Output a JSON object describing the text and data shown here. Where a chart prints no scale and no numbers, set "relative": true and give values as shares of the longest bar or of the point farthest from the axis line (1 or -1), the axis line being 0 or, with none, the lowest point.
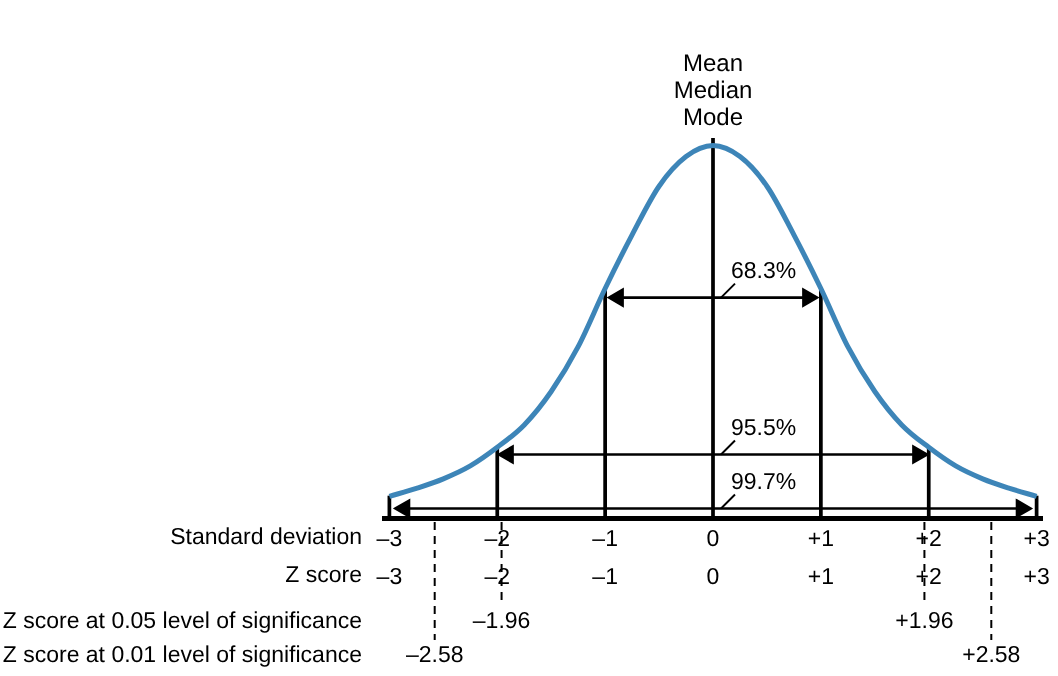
{
  "chart_data": {
    "type": "line",
    "relative": true,
    "xlabel": "Standard deviation",
    "x2label": "Z score",
    "x": [
      -3,
      -2.75,
      -2.5,
      -2.25,
      -2,
      -1.75,
      -1.5,
      -1.25,
      -1,
      -0.75,
      -0.5,
      -0.25,
      0,
      0.25,
      0.5,
      0.75,
      1,
      1.25,
      1.5,
      1.75,
      2,
      2.25,
      2.5,
      2.75,
      3
    ],
    "series": [
      {
        "color": "#3d85b8",
        "values": [
          0.057,
          0.078,
          0.103,
          0.137,
          0.186,
          0.245,
          0.333,
          0.451,
          0.604,
          0.745,
          0.873,
          0.951,
          0.98,
          0.951,
          0.873,
          0.745,
          0.604,
          0.451,
          0.333,
          0.245,
          0.186,
          0.137,
          0.103,
          0.078,
          0.057
        ]
      },
      {
        "type": "bar",
        "color": "#000000",
        "x": [
          -3,
          -2,
          -1,
          0,
          1,
          2,
          3
        ],
        "values": [
          0.057,
          0.186,
          0.604,
          1,
          0.604,
          0.186,
          0.057
        ]
      },
      {
        "type": "line",
        "name": "68.3%",
        "color": "#000000",
        "marker": "triangle",
        "x": [
          -0.88,
          0.88
        ],
        "values": [
          0.58,
          0.58
        ]
      },
      {
        "type": "line",
        "name": "95.5%",
        "color": "#000000",
        "marker": "triangle",
        "x": [
          -1.9,
          1.9
        ],
        "values": [
          0.167,
          0.167
        ]
      },
      {
        "type": "line",
        "name": "99.7%",
        "color": "#000000",
        "marker": "triangle",
        "x": [
          -2.86,
          2.86
        ],
        "values": [
          0.025,
          0.025
        ]
      }
    ],
    "xlim": [
      -3.05,
      3.05
    ],
    "xticks": [
      {
        "value": -3,
        "label": "–3"
      },
      {
        "value": -2,
        "label": "–2"
      },
      {
        "value": -1,
        "label": "–1"
      },
      0,
      {
        "value": 1,
        "label": "+1"
      },
      {
        "value": 2,
        "label": "+2"
      },
      {
        "value": 3,
        "label": "+3"
      }
    ],
    "x2lim": [
      -3.05,
      3.05
    ],
    "x2ticks": [
      {
        "value": -3,
        "label": "–3"
      },
      {
        "value": -2,
        "label": "–2"
      },
      {
        "value": -1,
        "label": "–1"
      },
      0,
      {
        "value": 1,
        "label": "+1"
      },
      {
        "value": 2,
        "label": "+2"
      },
      {
        "value": 3,
        "label": "+3"
      }
    ],
    "ref_lines": [
      {
        "axis": "x",
        "value": -1.96,
        "label": "–1.96",
        "line_style": "dashed"
      },
      {
        "axis": "x",
        "value": 1.96,
        "label": "+1.96",
        "line_style": "dashed"
      },
      {
        "axis": "x",
        "value": -2.58,
        "label": "–2.58",
        "line_style": "dashed"
      },
      {
        "axis": "x",
        "value": 2.58,
        "label": "+2.58",
        "line_style": "dashed"
      }
    ],
    "annotations": [
      "Mean\nMedian\nMode",
      "Z score at 0.05 level of significance",
      "Z score at 0.01 level of significance"
    ],
    "grid": false,
    "marker": "none",
    "line_style": "solid"
  }
}
